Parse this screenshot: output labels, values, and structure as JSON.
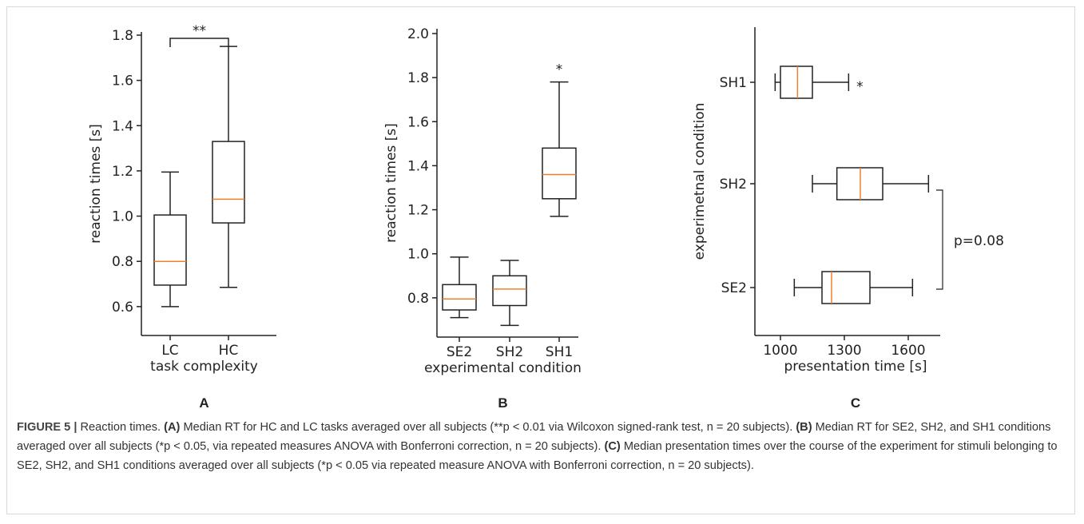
{
  "colors": {
    "box": "#222222",
    "median": "#f07f2a",
    "text": "#222222",
    "caption": "#333333"
  },
  "chart_data": [
    {
      "type": "box",
      "panel_label": "A",
      "orientation": "vertical",
      "xlabel": "task complexity",
      "ylabel": "reaction times [s]",
      "ylim": [
        0.55,
        1.8
      ],
      "yticks": [
        "0.6",
        "0.8",
        "1.0",
        "1.2",
        "1.4",
        "1.6",
        "1.8"
      ],
      "categories": [
        "LC",
        "HC"
      ],
      "boxes": [
        {
          "category": "LC",
          "min": 0.6,
          "q1": 0.695,
          "median": 0.8,
          "q3": 1.005,
          "max": 1.195
        },
        {
          "category": "HC",
          "min": 0.685,
          "q1": 0.97,
          "median": 1.075,
          "q3": 1.33,
          "max": 1.75
        }
      ],
      "annotations": [
        {
          "type": "bracket",
          "between": [
            "LC",
            "HC"
          ],
          "text": "**"
        }
      ]
    },
    {
      "type": "box",
      "panel_label": "B",
      "orientation": "vertical",
      "xlabel": "experimental condition",
      "ylabel": "reaction times [s]",
      "ylim": [
        0.6,
        2.0
      ],
      "yticks": [
        "0.8",
        "1.0",
        "1.2",
        "1.4",
        "1.6",
        "1.8",
        "2.0"
      ],
      "categories": [
        "SE2",
        "SH2",
        "SH1"
      ],
      "boxes": [
        {
          "category": "SE2",
          "min": 0.71,
          "q1": 0.745,
          "median": 0.795,
          "q3": 0.86,
          "max": 0.985
        },
        {
          "category": "SH2",
          "min": 0.675,
          "q1": 0.765,
          "median": 0.84,
          "q3": 0.9,
          "max": 0.97
        },
        {
          "category": "SH1",
          "min": 1.17,
          "q1": 1.25,
          "median": 1.36,
          "q3": 1.48,
          "max": 1.78
        }
      ],
      "annotations": [
        {
          "type": "marker",
          "category": "SH1",
          "text": "*"
        }
      ]
    },
    {
      "type": "box",
      "panel_label": "C",
      "orientation": "horizontal",
      "xlabel": "presentation time [s]",
      "ylabel": "experimetnal condition",
      "xlim": [
        880,
        1750
      ],
      "xticks": [
        "1000",
        "1300",
        "1600"
      ],
      "categories": [
        "SH1",
        "SH2",
        "SE2"
      ],
      "boxes": [
        {
          "category": "SH1",
          "min": 975,
          "q1": 1000,
          "median": 1080,
          "q3": 1150,
          "max": 1320
        },
        {
          "category": "SH2",
          "min": 1150,
          "q1": 1265,
          "median": 1375,
          "q3": 1480,
          "max": 1695
        },
        {
          "category": "SE2",
          "min": 1065,
          "q1": 1195,
          "median": 1240,
          "q3": 1420,
          "max": 1620
        }
      ],
      "annotations": [
        {
          "type": "marker",
          "category": "SH1",
          "text": "*"
        },
        {
          "type": "bracket",
          "between": [
            "SH2",
            "SE2"
          ],
          "text": "p=0.08"
        }
      ]
    }
  ],
  "caption": {
    "label": "FIGURE 5 |",
    "title": "Reaction times.",
    "p1_label": "(A)",
    "p1_text": "Median RT for HC and LC tasks averaged over all subjects (**p < 0.01 via Wilcoxon signed-rank test, n = 20 subjects).",
    "p2_label": "(B)",
    "p2_text": "Median RT for SE2, SH2, and SH1 conditions averaged over all subjects (*p < 0.05, via repeated measures ANOVA with Bonferroni correction, n = 20 subjects).",
    "p3_label": "(C)",
    "p3_text": "Median presentation times over the course of the experiment for stimuli belonging to SE2, SH2, and SH1 conditions averaged over all subjects (*p < 0.05 via repeated measure ANOVA with Bonferroni correction, n = 20 subjects)."
  }
}
